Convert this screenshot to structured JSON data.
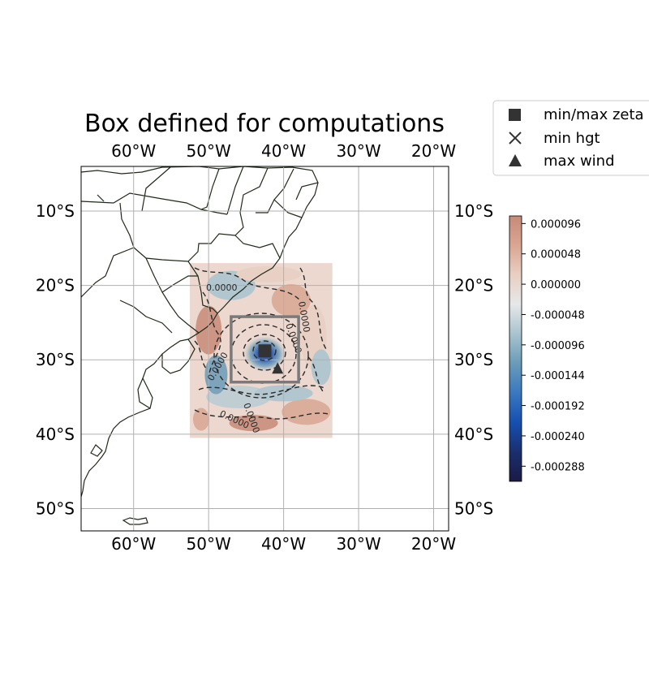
{
  "title": "Box defined for computations",
  "map": {
    "lon_range": [
      -67,
      -18
    ],
    "lat_range": [
      -53,
      -4
    ],
    "lon_ticks": [
      -60,
      -50,
      -40,
      -30,
      -20
    ],
    "lat_ticks": [
      -10,
      -20,
      -30,
      -40,
      -50
    ],
    "lon_tick_labels": [
      "60°W",
      "50°W",
      "40°W",
      "30°W",
      "20°W"
    ],
    "lat_tick_labels": [
      "10°S",
      "20°S",
      "30°S",
      "40°S",
      "50°S"
    ],
    "gridlines": true,
    "data_domain": {
      "lon": [
        -52.5,
        -33.5
      ],
      "lat": [
        -40.5,
        -17
      ]
    },
    "computation_box": {
      "lon": [
        -47,
        -38
      ],
      "lat": [
        -33,
        -24.2
      ]
    },
    "markers": {
      "minmax_zeta": {
        "lon": -42.5,
        "lat": -28.8
      },
      "min_hgt": {
        "lon": -42.5,
        "lat": -28.8
      },
      "max_wind": {
        "lon": -40.8,
        "lat": -31.2
      }
    },
    "contour_labels": [
      "0.0000",
      "0.0000",
      "0.0000",
      "0.0000",
      "0.0000",
      "0.0000"
    ]
  },
  "legend": {
    "position": "top-right",
    "items": [
      {
        "label": "min/max zeta",
        "marker": "square",
        "color": "#333333"
      },
      {
        "label": "min hgt",
        "marker": "x",
        "color": "#333333"
      },
      {
        "label": "max wind",
        "marker": "triangle",
        "color": "#333333"
      }
    ]
  },
  "colorbar": {
    "range": [
      -0.000312,
      0.000108
    ],
    "ticks": [
      "0.000096",
      "0.000048",
      "0.000000",
      "-0.000048",
      "-0.000096",
      "-0.000144",
      "-0.000192",
      "-0.000240",
      "-0.000288"
    ],
    "colors": [
      "#1b1a45",
      "#1a2f6e",
      "#1550b0",
      "#3a78c0",
      "#6a9bb8",
      "#a9c3cf",
      "#e6e8e9",
      "#e9cfc3",
      "#d9a692",
      "#c78a77"
    ]
  }
}
